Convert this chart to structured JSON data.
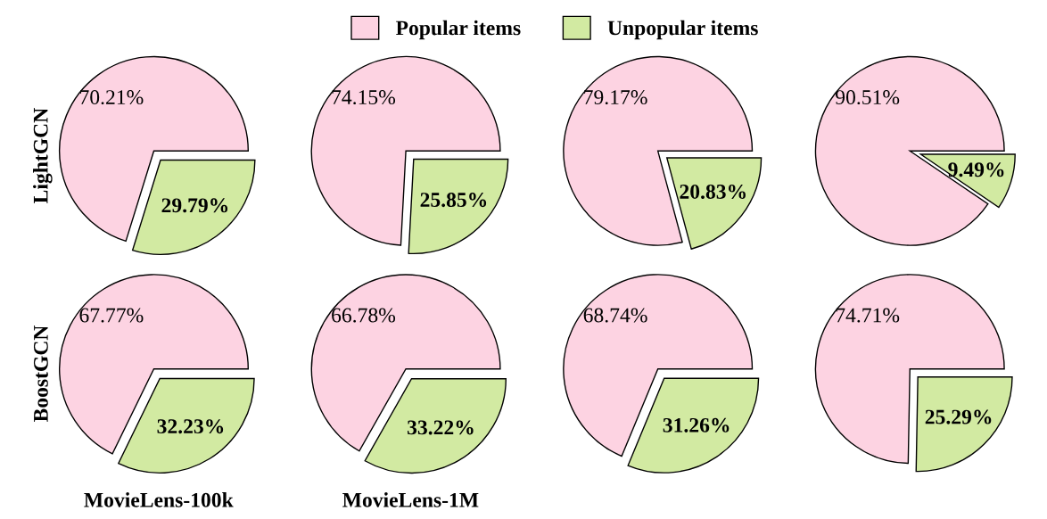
{
  "chart_data": [
    {
      "type": "pie",
      "ylabel": "LightGCN",
      "categories": [
        "Popular items",
        "Unpopular items"
      ],
      "values": [
        70.21,
        29.79
      ],
      "value_labels": [
        "70.21%",
        "29.79%"
      ],
      "colors": [
        "#fdd3e2",
        "#d2eaa2"
      ],
      "legend": "top"
    },
    {
      "type": "pie",
      "values": [
        74.15,
        25.85
      ],
      "value_labels": [
        "74.15%",
        "25.85%"
      ],
      "colors": [
        "#fdd3e2",
        "#d2eaa2"
      ]
    },
    {
      "type": "pie",
      "values": [
        79.17,
        20.83
      ],
      "value_labels": [
        "79.17%",
        "20.83%"
      ],
      "colors": [
        "#fdd3e2",
        "#d2eaa2"
      ]
    },
    {
      "type": "pie",
      "values": [
        90.51,
        9.49
      ],
      "value_labels": [
        "90.51%",
        "9.49%"
      ],
      "colors": [
        "#fdd3e2",
        "#d2eaa2"
      ]
    },
    {
      "type": "pie",
      "ylabel": "BoostGCN",
      "xlabel": "MovieLens-100k",
      "values": [
        67.77,
        32.23
      ],
      "value_labels": [
        "67.77%",
        "32.23%"
      ],
      "colors": [
        "#fdd3e2",
        "#d2eaa2"
      ]
    },
    {
      "type": "pie",
      "xlabel": "MovieLens-1M",
      "values": [
        66.78,
        33.22
      ],
      "value_labels": [
        "66.78%",
        "33.22%"
      ],
      "colors": [
        "#fdd3e2",
        "#d2eaa2"
      ]
    },
    {
      "type": "pie",
      "values": [
        68.74,
        31.26
      ],
      "value_labels": [
        "68.74%",
        "31.26%"
      ],
      "colors": [
        "#fdd3e2",
        "#d2eaa2"
      ]
    },
    {
      "type": "pie",
      "values": [
        74.71,
        25.29
      ],
      "value_labels": [
        "74.71%",
        "25.29%"
      ],
      "colors": [
        "#fdd3e2",
        "#d2eaa2"
      ]
    }
  ]
}
